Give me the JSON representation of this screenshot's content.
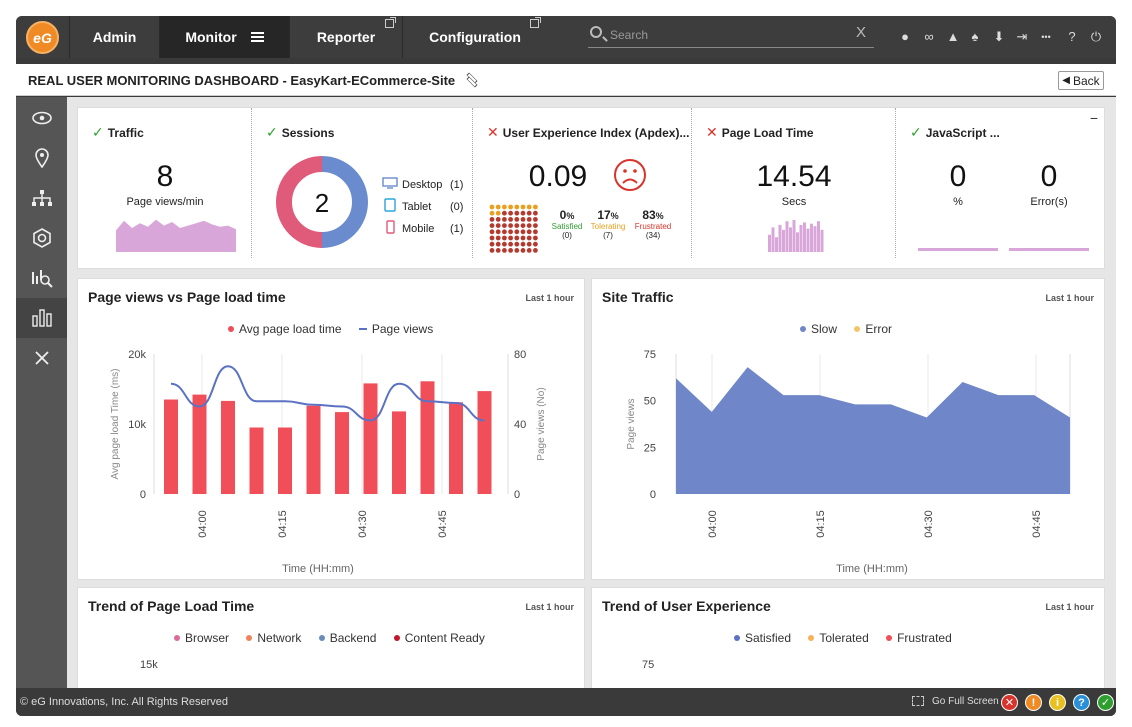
{
  "nav": {
    "logo": "eG",
    "tabs": [
      {
        "label": "Admin",
        "external": false
      },
      {
        "label": "Monitor",
        "external": false
      },
      {
        "label": "Reporter",
        "external": true
      },
      {
        "label": "Configuration",
        "external": true
      }
    ],
    "search_placeholder": "Search",
    "search_clear": "X",
    "icons": [
      "user-icon",
      "link-icon",
      "alert-icon",
      "bell-icon",
      "download-icon",
      "sign-in-icon",
      "more-icon",
      "help-icon",
      "power-icon"
    ]
  },
  "page": {
    "title": "REAL USER MONITORING DASHBOARD - EasyKart-ECommerce-Site",
    "back_label": "Back"
  },
  "sidebar": {
    "items": [
      "eye-icon",
      "location-icon",
      "topology-icon",
      "hexagon-gear-icon",
      "analysis-icon",
      "dashboard-icon",
      "close-icon"
    ],
    "active_index": 5
  },
  "kpi": {
    "minimize": "−",
    "traffic": {
      "title": "Traffic",
      "status": "ok",
      "value": "8",
      "label": "Page views/min",
      "spark": [
        18,
        26,
        20,
        24,
        21,
        27,
        22,
        25,
        20,
        22,
        24,
        26,
        23,
        21,
        22,
        19
      ]
    },
    "sessions": {
      "title": "Sessions",
      "status": "ok",
      "value": "2",
      "devices": [
        {
          "name": "Desktop",
          "count": "(1)",
          "color": "#6a8cce",
          "icon": "desktop-icon"
        },
        {
          "name": "Tablet",
          "count": "(0)",
          "color": "#2aa6d9",
          "icon": "tablet-icon"
        },
        {
          "name": "Mobile",
          "count": "(1)",
          "color": "#e05a7a",
          "icon": "mobile-icon"
        }
      ],
      "donut": [
        {
          "value": 1,
          "color": "#6a8cce"
        },
        {
          "value": 1,
          "color": "#e05a7a"
        }
      ]
    },
    "apdex": {
      "title": "User Experience Index (Apdex)...",
      "status": "bad",
      "value": "0.09",
      "face": "sad-face-icon",
      "satisfied": {
        "pct": "0",
        "label": "Satisfied",
        "count": "(0)",
        "color": "#2e9e2e"
      },
      "tolerating": {
        "pct": "17",
        "label": "Tolerating",
        "count": "(7)",
        "color": "#e8a020"
      },
      "frustrated": {
        "pct": "83",
        "label": "Frustrated",
        "count": "(34)",
        "color": "#d9342b"
      },
      "pct_sign": "%",
      "dots": {
        "tolerating": 7,
        "frustrated": 34,
        "total": 41
      }
    },
    "pageload": {
      "title": "Page Load Time",
      "status": "bad",
      "value": "14.54",
      "label": "Secs",
      "spark": [
        14,
        20,
        12,
        22,
        18,
        25,
        20,
        26,
        16,
        22,
        24,
        19,
        23,
        21,
        25,
        18
      ]
    },
    "javascript": {
      "title": "JavaScript ...",
      "status": "ok",
      "value1": "0",
      "label1": "%",
      "value2": "0",
      "label2": "Error(s)"
    }
  },
  "pv_chart": {
    "title": "Page views vs Page load time",
    "range": "Last 1 hour",
    "xlabel": "Time (HH:mm)",
    "ylabel_left": "Avg page load Time (ms)",
    "ylabel_right": "Page views (No)",
    "chart_data": {
      "type": "bar",
      "series": [
        {
          "name": "Avg page load time",
          "color": "#f04f5a",
          "values": [
            13500,
            14200,
            13300,
            9500,
            9500,
            12600,
            11700,
            15800,
            11800,
            16100,
            13100,
            14700
          ]
        },
        {
          "name": "Page views",
          "color": "#5b72c4",
          "values": [
            63,
            50,
            73,
            53,
            53,
            51,
            50,
            42,
            63,
            53,
            52,
            42
          ]
        }
      ],
      "y_left": {
        "ticks": [
          "0",
          "10k",
          "20k"
        ],
        "max": 20000
      },
      "y_right": {
        "ticks": [
          "0",
          "40",
          "80"
        ],
        "max": 80
      },
      "x_ticks": [
        "04:00",
        "04:15",
        "04:30",
        "04:45"
      ]
    }
  },
  "traffic_chart": {
    "title": "Site Traffic",
    "range": "Last 1 hour",
    "xlabel": "Time (HH:mm)",
    "ylabel": "Page views",
    "chart_data": {
      "type": "area",
      "series": [
        {
          "name": "Slow",
          "color": "#6f86c8",
          "values": [
            62,
            44,
            68,
            53,
            53,
            48,
            48,
            41,
            60,
            53,
            53,
            41
          ]
        },
        {
          "name": "Error",
          "color": "#f5c36b",
          "values": []
        }
      ],
      "ylim": [
        0,
        75
      ],
      "y_ticks": [
        "0",
        "25",
        "50",
        "75"
      ],
      "x_ticks": [
        "04:00",
        "04:15",
        "04:30",
        "04:45"
      ]
    }
  },
  "trend_load": {
    "title": "Trend of Page Load Time",
    "range": "Last 1 hour",
    "legend": [
      {
        "name": "Browser",
        "color": "#d96a9a"
      },
      {
        "name": "Network",
        "color": "#f0825a"
      },
      {
        "name": "Backend",
        "color": "#6a8cb8"
      },
      {
        "name": "Content Ready",
        "color": "#c0182a"
      }
    ],
    "top_tick": "15k"
  },
  "trend_ux": {
    "title": "Trend of User Experience",
    "range": "Last 1 hour",
    "legend": [
      {
        "name": "Satisfied",
        "color": "#5b72c4"
      },
      {
        "name": "Tolerated",
        "color": "#f5b05a"
      },
      {
        "name": "Frustrated",
        "color": "#f04f5a"
      }
    ],
    "top_tick": "75"
  },
  "footer": {
    "copyright": "© eG Innovations, Inc. All Rights Reserved",
    "fullscreen": "Go Full Screen",
    "status_icons": [
      {
        "glyph": "✕",
        "color": "#d9342b",
        "name": "critical-status-icon"
      },
      {
        "glyph": "!",
        "color": "#f08a24",
        "name": "major-status-icon"
      },
      {
        "glyph": "i",
        "color": "#e8c020",
        "name": "minor-status-icon"
      },
      {
        "glyph": "?",
        "color": "#2a8fd9",
        "name": "unknown-status-icon"
      },
      {
        "glyph": "✓",
        "color": "#2e9e2e",
        "name": "normal-status-icon"
      }
    ]
  }
}
